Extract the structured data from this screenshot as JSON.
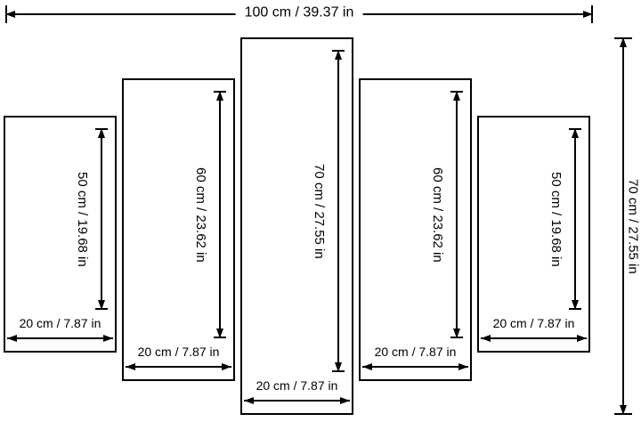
{
  "diagram": {
    "overall": {
      "width_cm": 100,
      "height_cm": 70,
      "width_label": "100 cm / 39.37 in",
      "height_label": "70 cm / 27.55 in"
    },
    "panels": [
      {
        "height_cm": 50,
        "width_cm": 20,
        "height_label": "50 cm / 19.68 in",
        "width_label": "20 cm / 7.87 in"
      },
      {
        "height_cm": 60,
        "width_cm": 20,
        "height_label": "60 cm / 23.62 in",
        "width_label": "20 cm / 7.87 in"
      },
      {
        "height_cm": 70,
        "width_cm": 20,
        "height_label": "70 cm / 27.55 in",
        "width_label": "20 cm / 7.87 in"
      },
      {
        "height_cm": 60,
        "width_cm": 20,
        "height_label": "60 cm / 23.62 in",
        "width_label": "20 cm / 7.87 in"
      },
      {
        "height_cm": 50,
        "width_cm": 20,
        "height_label": "50 cm / 19.68 in",
        "width_label": "20 cm / 7.87 in"
      }
    ],
    "colors": {
      "line": "#000000",
      "background": "#ffffff"
    }
  }
}
